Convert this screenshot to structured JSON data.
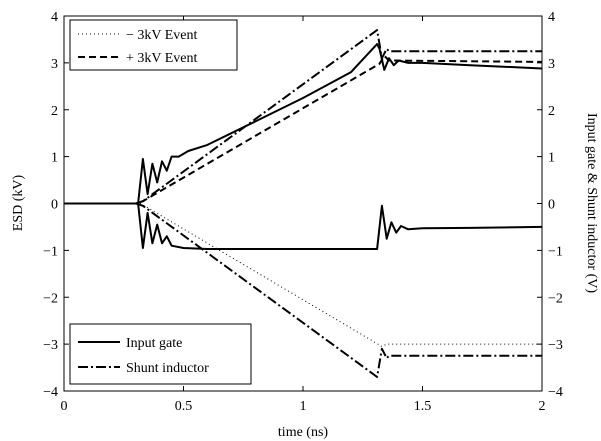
{
  "chart_data": {
    "type": "line",
    "xlabel": "time (ns)",
    "ylabel_left": "ESD (kV)",
    "ylabel_right": "Input gate & Shunt inductor (V)",
    "xlim": [
      0,
      2
    ],
    "ylim": [
      -4,
      4
    ],
    "x_ticks": [
      "0",
      "0.5",
      "1",
      "1.5",
      "2"
    ],
    "y_ticks": [
      "−4",
      "−3",
      "−2",
      "−1",
      "0",
      "1",
      "2",
      "3",
      "4"
    ],
    "grid": false,
    "legends": [
      {
        "placement": "top-left",
        "entries": [
          {
            "label": "− 3kV Event",
            "style": "dotted"
          },
          {
            "label": "+ 3kV Event",
            "style": "dashed"
          }
        ]
      },
      {
        "placement": "bottom-left",
        "entries": [
          {
            "label": "Input gate",
            "style": "solid"
          },
          {
            "label": "Shunt inductor",
            "style": "dashdot"
          }
        ]
      }
    ],
    "series": [
      {
        "name": "− 3kV Event",
        "style": "dotted",
        "x": [
          0,
          0.3,
          0.32,
          1.33,
          1.35,
          2.0
        ],
        "y": [
          0,
          0,
          0,
          -3.05,
          -3.0,
          -3.0
        ]
      },
      {
        "name": "+ 3kV Event",
        "style": "dashed",
        "x": [
          0,
          0.3,
          0.33,
          1.32,
          1.34,
          1.36,
          2.0
        ],
        "y": [
          0,
          0,
          0.05,
          2.98,
          3.15,
          3.05,
          3.02
        ]
      },
      {
        "name": "Input gate",
        "style": "solid",
        "x": [
          0,
          0.31,
          0.33,
          0.35,
          0.37,
          0.39,
          0.41,
          0.43,
          0.45,
          0.48,
          0.52,
          0.6,
          0.8,
          1.0,
          1.2,
          1.31,
          1.32,
          1.34,
          1.36,
          1.38,
          1.4,
          1.44,
          1.5,
          1.7,
          2.0
        ],
        "y": [
          0,
          0,
          0.95,
          0.2,
          0.85,
          0.45,
          0.9,
          0.7,
          1.0,
          1.0,
          1.12,
          1.25,
          1.75,
          2.25,
          2.8,
          3.4,
          3.3,
          2.85,
          3.1,
          2.95,
          3.05,
          3.0,
          3.0,
          2.95,
          2.88
        ]
      },
      {
        "name": "Input gate",
        "style": "solid",
        "x": [
          0,
          0.31,
          0.33,
          0.35,
          0.37,
          0.39,
          0.41,
          0.43,
          0.45,
          0.5,
          0.6,
          0.8,
          1.0,
          1.2,
          1.31,
          1.33,
          1.35,
          1.37,
          1.39,
          1.41,
          1.44,
          1.5,
          1.7,
          2.0
        ],
        "y": [
          0,
          0,
          -0.95,
          -0.2,
          -0.85,
          -0.45,
          -0.85,
          -0.7,
          -0.9,
          -0.95,
          -0.97,
          -0.97,
          -0.97,
          -0.97,
          -0.97,
          -0.05,
          -0.75,
          -0.4,
          -0.62,
          -0.48,
          -0.55,
          -0.53,
          -0.52,
          -0.5
        ]
      },
      {
        "name": "Shunt inductor",
        "style": "dashdot",
        "x": [
          0,
          0.3,
          0.33,
          1.31,
          1.33,
          1.35,
          1.36,
          2.0
        ],
        "y": [
          0,
          0,
          0.05,
          3.7,
          3.1,
          3.3,
          3.25,
          3.25
        ]
      },
      {
        "name": "Shunt inductor",
        "style": "dashdot",
        "x": [
          0,
          0.3,
          0.33,
          1.31,
          1.33,
          1.35,
          1.36,
          2.0
        ],
        "y": [
          0,
          0,
          -0.05,
          -3.7,
          -3.1,
          -3.3,
          -3.25,
          -3.25
        ]
      }
    ]
  }
}
